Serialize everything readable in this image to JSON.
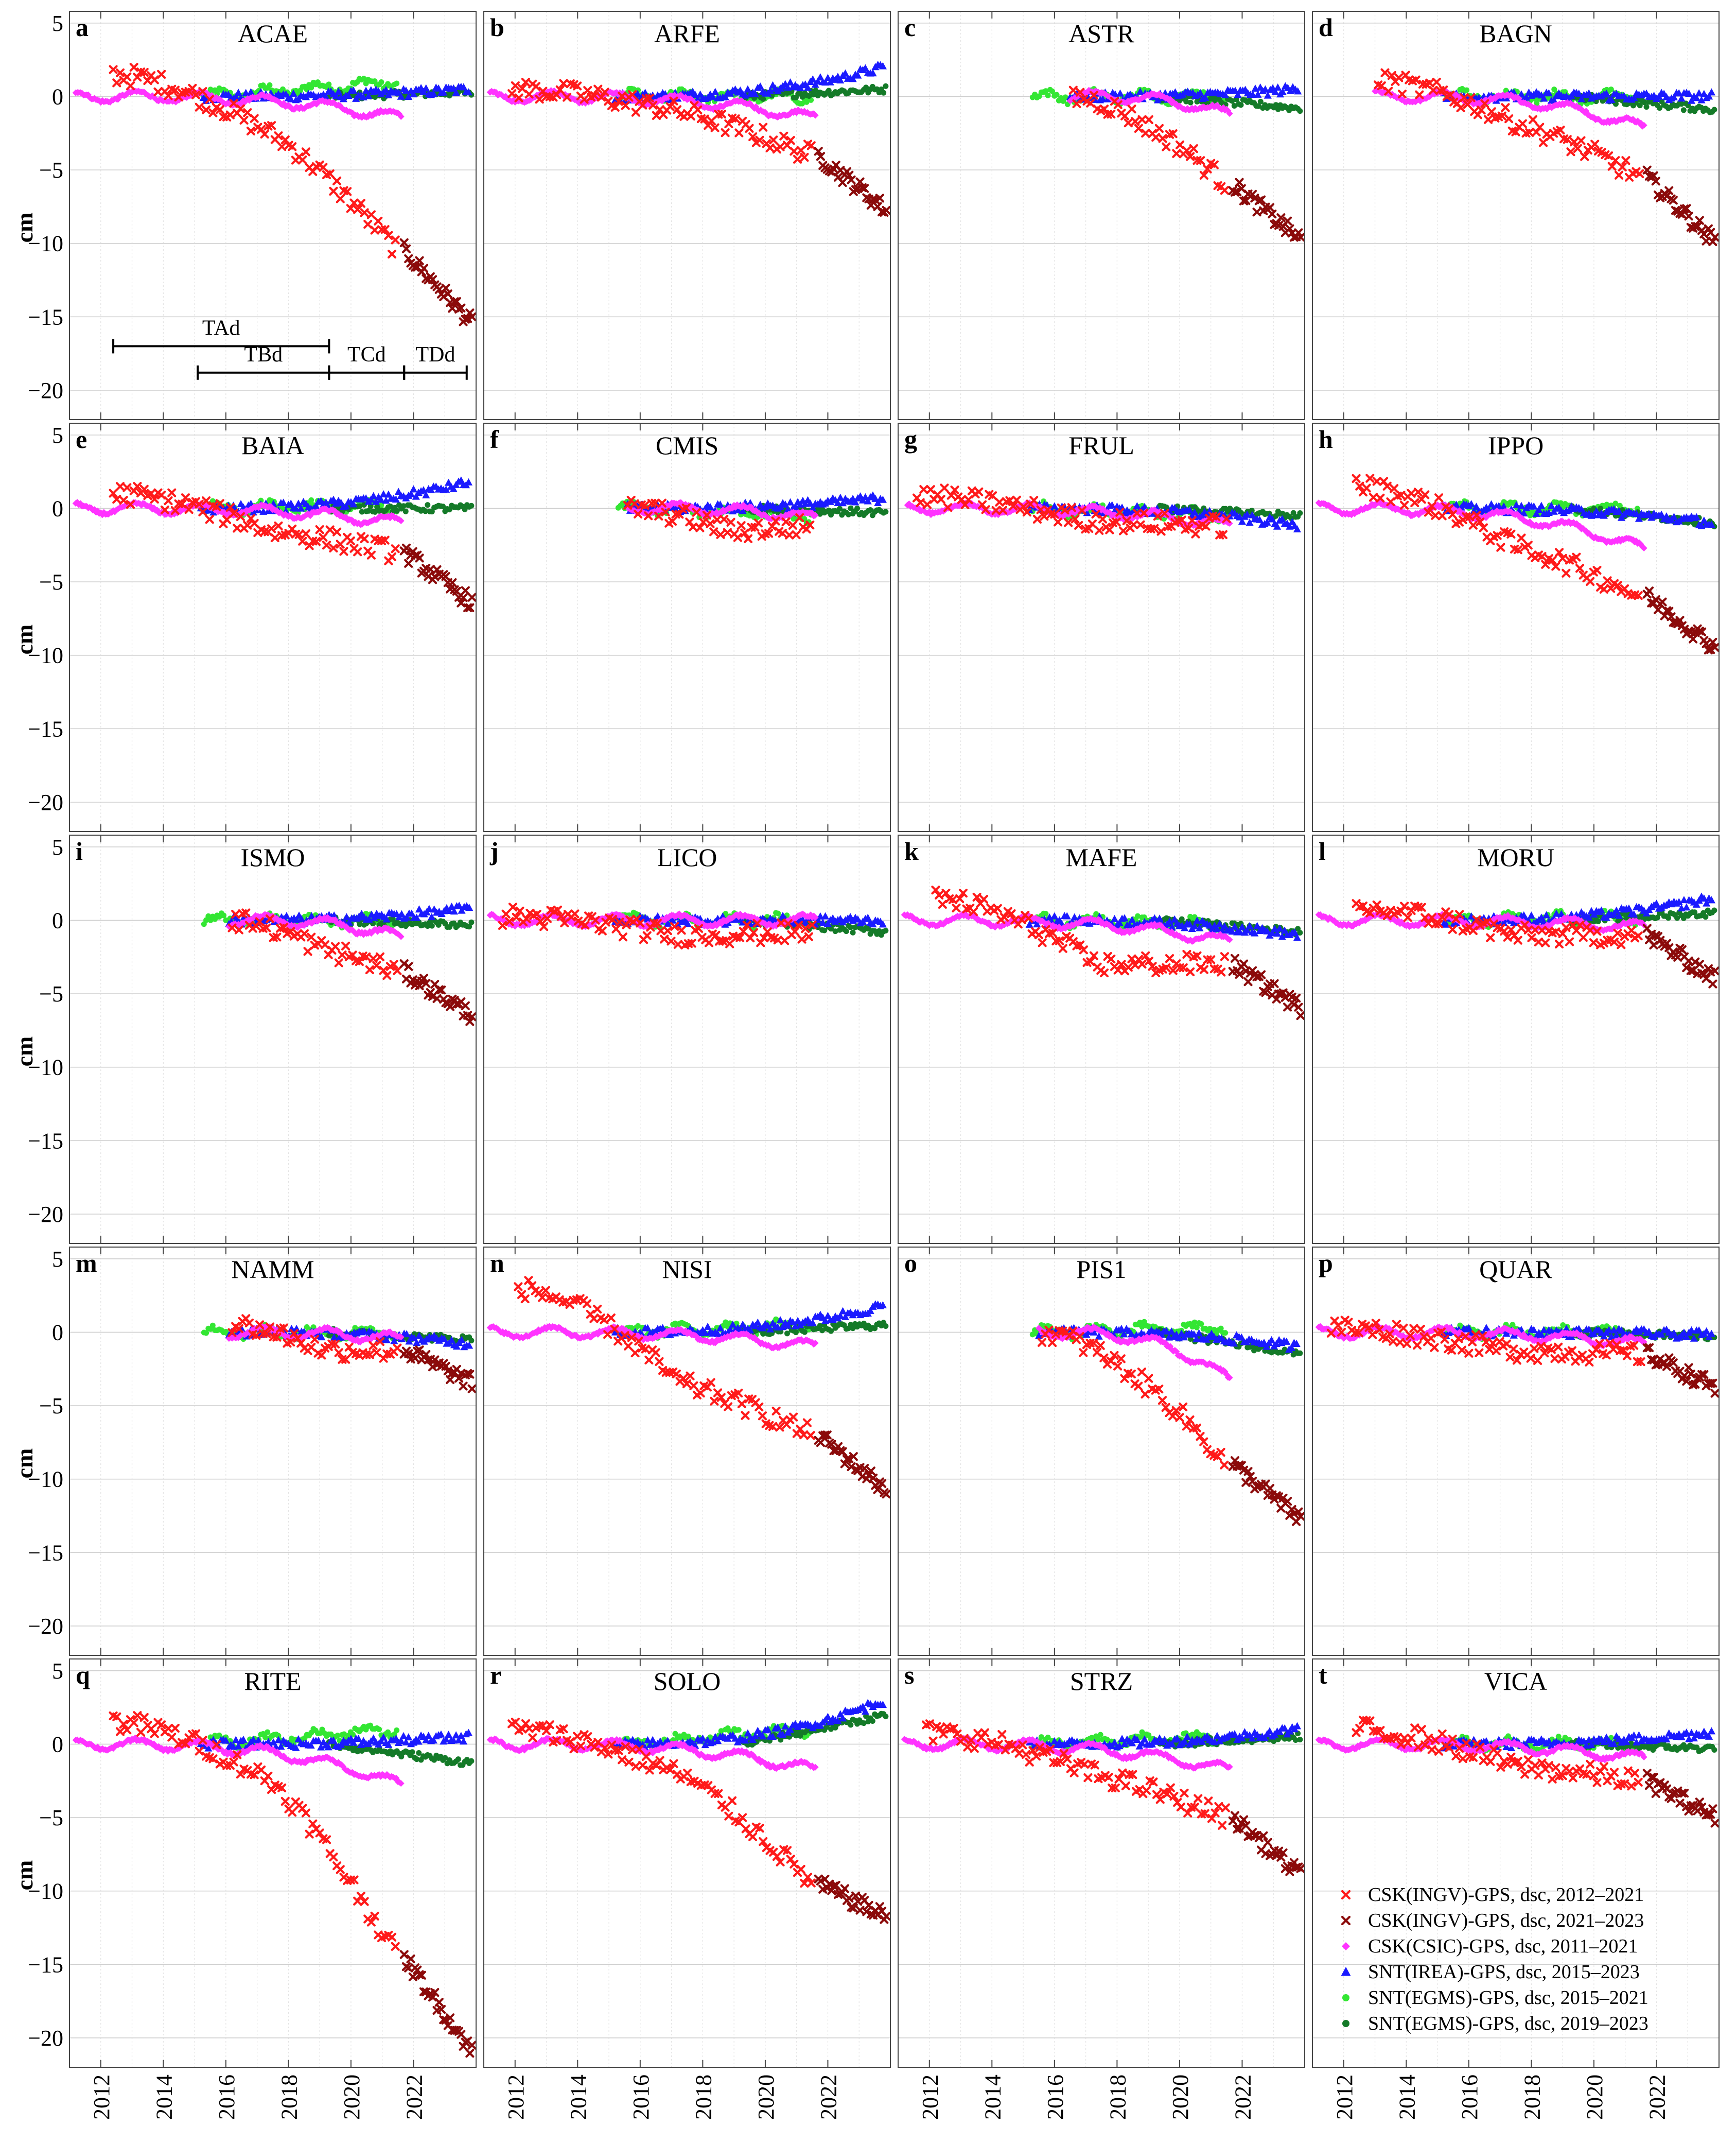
{
  "figure": {
    "y_axis_label": "cm",
    "y_ticks": [
      5,
      0,
      -5,
      -10,
      -15,
      -20
    ],
    "x_ticks": [
      2012,
      2014,
      2016,
      2018,
      2020,
      2022
    ],
    "xlim": [
      2011.0,
      2024.0
    ],
    "ylim": [
      -22,
      5.8
    ]
  },
  "legend": {
    "entries": [
      {
        "id": "csk_ingv_a",
        "label": "CSK(INGV)-GPS, dsc, 2012–2021",
        "color": "#ff1a1a",
        "marker": "x"
      },
      {
        "id": "csk_ingv_b",
        "label": "CSK(INGV)-GPS, dsc, 2021–2023",
        "color": "#8b0a0a",
        "marker": "x"
      },
      {
        "id": "csk_csic",
        "label": "CSK(CSIC)-GPS, dsc, 2011–2021",
        "color": "#ff33ff",
        "marker": "diamond"
      },
      {
        "id": "snt_irea",
        "label": "SNT(IREA)-GPS, dsc, 2015–2023",
        "color": "#1a1aff",
        "marker": "triangle"
      },
      {
        "id": "snt_egms_a",
        "label": "SNT(EGMS)-GPS, dsc, 2015–2021",
        "color": "#33e633",
        "marker": "circle"
      },
      {
        "id": "snt_egms_b",
        "label": "SNT(EGMS)-GPS, dsc, 2019–2023",
        "color": "#147a28",
        "marker": "circle"
      }
    ]
  },
  "annotations": {
    "time_intervals": [
      {
        "label": "TAd",
        "start": 2012.4,
        "end": 2019.3
      },
      {
        "label": "TBd",
        "start": 2015.1,
        "end": 2019.3
      },
      {
        "label": "TCd",
        "start": 2019.3,
        "end": 2021.7
      },
      {
        "label": "TDd",
        "start": 2021.7,
        "end": 2023.7
      }
    ]
  },
  "chart_data": [
    {
      "type": "scatter",
      "letter": "a",
      "title": "ACAE",
      "csk_start": 2012.4,
      "csk_end": 2021.5,
      "csk_v1": 1.5,
      "csk_mid": -2.5,
      "csk_end_value": -10.5,
      "csk_b_end": -15.5,
      "csic_start": 2011.2,
      "csic_end": 2021.6,
      "csic_end_value": -1.5,
      "irea_start": 2015.2,
      "irea_end": 2023.8,
      "irea_end_value": 0.5,
      "egms_a_end_value": 1.0,
      "egms_b_end_value": 0.3
    },
    {
      "type": "scatter",
      "letter": "b",
      "title": "ARFE",
      "csk_start": 2011.9,
      "csk_end": 2021.5,
      "csk_v1": 0.5,
      "csk_mid": -1.0,
      "csk_end_value": -4.0,
      "csk_b_end": -7.8,
      "csic_start": 2011.2,
      "csic_end": 2021.6,
      "csic_end_value": -1.5,
      "irea_start": 2015.2,
      "irea_end": 2023.8,
      "irea_end_value": 2.0,
      "egms_a_end_value": 0.0,
      "egms_b_end_value": 0.5
    },
    {
      "type": "scatter",
      "letter": "c",
      "title": "ASTR",
      "csk_start": 2016.6,
      "csk_end": 2021.5,
      "csk_v1": 0.0,
      "csk_mid": -2.5,
      "csk_end_value": -6.0,
      "csk_b_end": -9.8,
      "csic_start": 2016.5,
      "csic_end": 2021.6,
      "csic_end_value": -1.3,
      "irea_start": 2016.5,
      "irea_end": 2023.8,
      "irea_end_value": 0.5,
      "egms_a_end_value": 0.0,
      "egms_b_end_value": -0.8
    },
    {
      "type": "scatter",
      "letter": "d",
      "title": "BAGN",
      "csk_start": 2013.1,
      "csk_end": 2021.5,
      "csk_v1": 1.0,
      "csk_mid": -2.0,
      "csk_end_value": -5.5,
      "csk_b_end": -10.0,
      "csic_start": 2013.0,
      "csic_end": 2021.6,
      "csic_end_value": -2.2,
      "irea_start": 2015.2,
      "irea_end": 2023.8,
      "irea_end_value": 0.0,
      "egms_a_end_value": 0.0,
      "egms_b_end_value": -0.9
    },
    {
      "type": "scatter",
      "letter": "e",
      "title": "BAIA",
      "csk_start": 2012.4,
      "csk_end": 2021.5,
      "csk_v1": 1.0,
      "csk_mid": -1.5,
      "csk_end_value": -3.0,
      "csk_b_end": -6.5,
      "csic_start": 2011.2,
      "csic_end": 2021.6,
      "csic_end_value": -1.0,
      "irea_start": 2015.2,
      "irea_end": 2023.8,
      "irea_end_value": 1.8,
      "egms_a_end_value": 0.2,
      "egms_b_end_value": 0.0
    },
    {
      "type": "scatter",
      "letter": "f",
      "title": "CMIS",
      "csk_start": 2015.6,
      "csk_end": 2021.5,
      "csk_v1": 0.0,
      "csk_mid": -1.5,
      "csk_end_value": -1.2,
      "csk_b_end": null,
      "csic_start": 2015.6,
      "csic_end": 2021.6,
      "csic_end_value": -0.7,
      "irea_start": 2015.6,
      "irea_end": 2023.8,
      "irea_end_value": 0.7,
      "egms_a_end_value": -0.5,
      "egms_b_end_value": -0.3
    },
    {
      "type": "scatter",
      "letter": "g",
      "title": "FRUL",
      "csk_start": 2011.6,
      "csk_end": 2021.5,
      "csk_v1": 0.8,
      "csk_mid": -0.8,
      "csk_end_value": -1.2,
      "csk_b_end": null,
      "csic_start": 2011.3,
      "csic_end": 2021.6,
      "csic_end_value": -1.2,
      "irea_start": 2015.2,
      "irea_end": 2023.8,
      "irea_end_value": -1.2,
      "egms_a_end_value": -0.5,
      "egms_b_end_value": -0.5
    },
    {
      "type": "scatter",
      "letter": "h",
      "title": "IPPO",
      "csk_start": 2012.4,
      "csk_end": 2021.5,
      "csk_v1": 1.5,
      "csk_mid": -2.5,
      "csk_end_value": -6.0,
      "csk_b_end": -9.5,
      "csic_start": 2011.2,
      "csic_end": 2021.6,
      "csic_end_value": -2.8,
      "irea_start": 2015.2,
      "irea_end": 2023.8,
      "irea_end_value": -1.0,
      "egms_a_end_value": 0.0,
      "egms_b_end_value": -1.0
    },
    {
      "type": "scatter",
      "letter": "i",
      "title": "ISMO",
      "csk_start": 2016.2,
      "csk_end": 2021.5,
      "csk_v1": 0.0,
      "csk_mid": -2.0,
      "csk_end_value": -3.5,
      "csk_b_end": -6.5,
      "csic_start": 2016.1,
      "csic_end": 2021.6,
      "csic_end_value": -1.2,
      "irea_start": 2016.1,
      "irea_end": 2023.8,
      "irea_end_value": 0.8,
      "egms_a_end_value": 0.0,
      "egms_b_end_value": -0.3
    },
    {
      "type": "scatter",
      "letter": "j",
      "title": "LICO",
      "csk_start": 2011.6,
      "csk_end": 2021.5,
      "csk_v1": 0.3,
      "csk_mid": -1.0,
      "csk_end_value": -0.8,
      "csk_b_end": null,
      "csic_start": 2011.2,
      "csic_end": 2021.6,
      "csic_end_value": 0.0,
      "irea_start": 2015.2,
      "irea_end": 2023.8,
      "irea_end_value": 0.0,
      "egms_a_end_value": 0.0,
      "egms_b_end_value": -0.8
    },
    {
      "type": "scatter",
      "letter": "k",
      "title": "MAFE",
      "csk_start": 2012.2,
      "csk_end": 2021.5,
      "csk_v1": 1.5,
      "csk_mid": -3.0,
      "csk_end_value": -3.0,
      "csk_b_end": -6.0,
      "csic_start": 2011.2,
      "csic_end": 2021.6,
      "csic_end_value": -1.5,
      "irea_start": 2015.2,
      "irea_end": 2023.8,
      "irea_end_value": -1.0,
      "egms_a_end_value": -0.3,
      "egms_b_end_value": -0.8
    },
    {
      "type": "scatter",
      "letter": "l",
      "title": "MORU",
      "csk_start": 2012.4,
      "csk_end": 2021.5,
      "csk_v1": 0.8,
      "csk_mid": -1.0,
      "csk_end_value": -1.0,
      "csk_b_end": -4.0,
      "csic_start": 2011.2,
      "csic_end": 2021.6,
      "csic_end_value": -0.5,
      "irea_start": 2015.2,
      "irea_end": 2023.8,
      "irea_end_value": 1.5,
      "egms_a_end_value": 0.2,
      "egms_b_end_value": 0.5
    },
    {
      "type": "scatter",
      "letter": "m",
      "title": "NAMM",
      "csk_start": 2016.2,
      "csk_end": 2021.5,
      "csk_v1": 0.5,
      "csk_mid": -1.2,
      "csk_end_value": -1.2,
      "csk_b_end": -3.5,
      "csic_start": 2016.1,
      "csic_end": 2021.6,
      "csic_end_value": -0.5,
      "irea_start": 2016.1,
      "irea_end": 2023.8,
      "irea_end_value": -0.8,
      "egms_a_end_value": 0.0,
      "egms_b_end_value": -0.5
    },
    {
      "type": "scatter",
      "letter": "n",
      "title": "NISI",
      "csk_start": 2012.1,
      "csk_end": 2021.5,
      "csk_v1": 3.0,
      "csk_mid": -3.5,
      "csk_end_value": -7.0,
      "csk_b_end": -10.8,
      "csic_start": 2011.2,
      "csic_end": 2021.6,
      "csic_end_value": -1.0,
      "irea_start": 2015.2,
      "irea_end": 2023.8,
      "irea_end_value": 1.8,
      "egms_a_end_value": 0.5,
      "egms_b_end_value": 0.5
    },
    {
      "type": "scatter",
      "letter": "o",
      "title": "PIS1",
      "csk_start": 2015.6,
      "csk_end": 2021.5,
      "csk_v1": 0.0,
      "csk_mid": -3.5,
      "csk_end_value": -9.0,
      "csk_b_end": -12.8,
      "csic_start": 2015.5,
      "csic_end": 2021.6,
      "csic_end_value": -3.3,
      "irea_start": 2015.5,
      "irea_end": 2023.8,
      "irea_end_value": -1.0,
      "egms_a_end_value": 0.3,
      "egms_b_end_value": -1.5
    },
    {
      "type": "scatter",
      "letter": "p",
      "title": "QUAR",
      "csk_start": 2011.6,
      "csk_end": 2021.5,
      "csk_v1": 0.3,
      "csk_mid": -1.2,
      "csk_end_value": -1.5,
      "csk_b_end": -3.8,
      "csic_start": 2011.2,
      "csic_end": 2021.6,
      "csic_end_value": -0.8,
      "irea_start": 2015.2,
      "irea_end": 2023.8,
      "irea_end_value": -0.2,
      "egms_a_end_value": 0.0,
      "egms_b_end_value": -0.3
    },
    {
      "type": "scatter",
      "letter": "q",
      "title": "RITE",
      "csk_start": 2012.4,
      "csk_end": 2021.5,
      "csk_v1": 1.5,
      "csk_mid": -2.5,
      "csk_end_value": -14.5,
      "csk_b_end": -21.0,
      "csic_start": 2011.2,
      "csic_end": 2021.6,
      "csic_end_value": -2.8,
      "irea_start": 2015.2,
      "irea_end": 2023.8,
      "irea_end_value": 0.5,
      "egms_a_end_value": 1.0,
      "egms_b_end_value": -1.3
    },
    {
      "type": "scatter",
      "letter": "r",
      "title": "SOLO",
      "csk_start": 2011.9,
      "csk_end": 2021.5,
      "csk_v1": 1.0,
      "csk_mid": -2.0,
      "csk_end_value": -9.5,
      "csk_b_end": -11.8,
      "csic_start": 2011.2,
      "csic_end": 2021.6,
      "csic_end_value": -1.8,
      "irea_start": 2015.2,
      "irea_end": 2023.8,
      "irea_end_value": 3.0,
      "egms_a_end_value": 1.0,
      "egms_b_end_value": 2.0
    },
    {
      "type": "scatter",
      "letter": "s",
      "title": "STRZ",
      "csk_start": 2011.9,
      "csk_end": 2021.5,
      "csk_v1": 0.8,
      "csk_mid": -2.0,
      "csk_end_value": -5.0,
      "csk_b_end": -9.0,
      "csic_start": 2011.2,
      "csic_end": 2021.6,
      "csic_end_value": -1.8,
      "irea_start": 2015.2,
      "irea_end": 2023.8,
      "irea_end_value": 1.0,
      "egms_a_end_value": 0.5,
      "egms_b_end_value": 0.5
    },
    {
      "type": "scatter",
      "letter": "t",
      "title": "VICA",
      "csk_start": 2012.4,
      "csk_end": 2021.5,
      "csk_v1": 1.0,
      "csk_mid": -1.5,
      "csk_end_value": -2.5,
      "csk_b_end": -5.0,
      "csic_start": 2011.2,
      "csic_end": 2021.6,
      "csic_end_value": -1.0,
      "irea_start": 2015.2,
      "irea_end": 2023.8,
      "irea_end_value": 0.8,
      "egms_a_end_value": 0.0,
      "egms_b_end_value": -0.3
    }
  ]
}
